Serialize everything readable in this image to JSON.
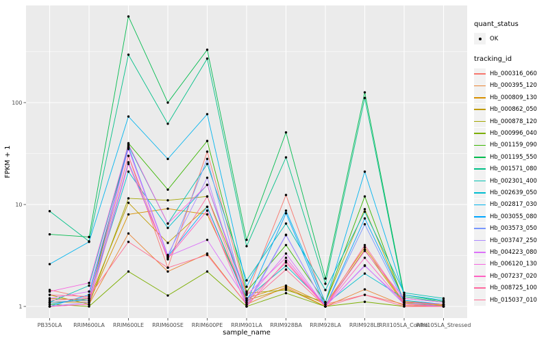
{
  "chart_data": {
    "type": "line",
    "title": "",
    "xlabel": "sample_name",
    "ylabel": "FPKM + 1",
    "x_categories": [
      "PB350LA",
      "RRIM600LA",
      "RRIM600LE",
      "RRIM600SE",
      "RRIM600PE",
      "RRIM901LA",
      "RRIM928BA",
      "RRIM928LA",
      "RRIM928LE",
      "RRII105LA_Control",
      "RRII105LA_Stressed"
    ],
    "y_axis": {
      "scale": "log10",
      "tick_labels": [
        "1",
        "10",
        "100"
      ],
      "tick_values": [
        1,
        10,
        100
      ],
      "minor_values": [
        3.162,
        31.62,
        316.2
      ],
      "ylim": [
        0.77,
        890
      ]
    },
    "legend": {
      "quant_status": {
        "title": "quant_status",
        "items": [
          {
            "label": "OK",
            "marker": "point"
          }
        ]
      },
      "tracking_id": {
        "title": "tracking_id"
      }
    },
    "panel": {
      "bg": "#EBEBEB",
      "grid_major": "#FFFFFF",
      "grid_minor": "#FFFFFF",
      "tick_color": "#333333",
      "tick_label_color": "#4D4D4D"
    },
    "series": [
      {
        "name": "Hb_000316_060",
        "color": "#F8766D",
        "values": [
          1.45,
          1.2,
          30,
          2.4,
          33,
          1.3,
          12.4,
          1.05,
          1.3,
          1.05,
          1.0
        ]
      },
      {
        "name": "Hb_000395_120",
        "color": "#EA8331",
        "values": [
          1.0,
          1.05,
          5.2,
          2.2,
          3.3,
          1.05,
          1.55,
          1.0,
          1.47,
          1.02,
          1.0
        ]
      },
      {
        "name": "Hb_000809_130",
        "color": "#D89000",
        "values": [
          1.1,
          1.1,
          8.0,
          9.1,
          8.0,
          1.2,
          1.6,
          1.05,
          3.8,
          1.08,
          1.03
        ]
      },
      {
        "name": "Hb_000862_050",
        "color": "#C09B00",
        "values": [
          1.2,
          1.15,
          10.4,
          4.2,
          9.5,
          1.15,
          1.5,
          1.0,
          3.6,
          1.05,
          1.02
        ]
      },
      {
        "name": "Hb_000878_120",
        "color": "#A3A500",
        "values": [
          1.3,
          1.05,
          11.5,
          11,
          12,
          1.35,
          1.45,
          1.1,
          9.0,
          1.12,
          1.05
        ]
      },
      {
        "name": "Hb_000996_040",
        "color": "#7CAE00",
        "values": [
          1.05,
          1.0,
          2.2,
          1.28,
          2.2,
          1.0,
          1.35,
          1.0,
          1.11,
          1.0,
          1.0
        ]
      },
      {
        "name": "Hb_001159_090",
        "color": "#39B600",
        "values": [
          1.1,
          1.15,
          40,
          14,
          42,
          1.4,
          4.0,
          1.1,
          12,
          1.1,
          1.05
        ]
      },
      {
        "name": "Hb_001195_550",
        "color": "#00BB4E",
        "values": [
          5.1,
          4.8,
          700,
          100,
          330,
          4.5,
          51,
          1.88,
          126,
          1.3,
          1.12
        ]
      },
      {
        "name": "Hb_001571_080",
        "color": "#00C087",
        "values": [
          8.6,
          4.35,
          295,
          62,
          270,
          3.9,
          29,
          1.67,
          111,
          1.25,
          1.1
        ]
      },
      {
        "name": "Hb_002301_400",
        "color": "#00C0B2",
        "values": [
          1.1,
          1.6,
          38,
          6.5,
          25,
          1.8,
          6.5,
          1.45,
          8.5,
          1.36,
          1.2
        ]
      },
      {
        "name": "Hb_002639_050",
        "color": "#00BDD0",
        "values": [
          1.05,
          1.2,
          21,
          5.9,
          15.6,
          1.2,
          2.5,
          1.05,
          2.1,
          1.2,
          1.1
        ]
      },
      {
        "name": "Hb_002817_030",
        "color": "#00B4EF",
        "values": [
          2.6,
          4.3,
          73,
          28,
          77,
          1.56,
          8.7,
          1.1,
          21,
          1.3,
          1.15
        ]
      },
      {
        "name": "Hb_003055_080",
        "color": "#00A5FF",
        "values": [
          1.0,
          1.3,
          37,
          3.1,
          9.5,
          1.1,
          8.2,
          1.0,
          7.3,
          1.15,
          1.05
        ]
      },
      {
        "name": "Hb_003573_050",
        "color": "#7997FF",
        "values": [
          1.1,
          1.15,
          26,
          3.0,
          28,
          1.05,
          5.05,
          1.0,
          6.4,
          1.1,
          1.0
        ]
      },
      {
        "name": "Hb_003747_250",
        "color": "#AC88FF",
        "values": [
          1.0,
          1.1,
          36,
          3.2,
          18.3,
          1.0,
          5.0,
          1.0,
          2.53,
          1.05,
          1.0
        ]
      },
      {
        "name": "Hb_004223_080",
        "color": "#DC71FA",
        "values": [
          1.2,
          1.4,
          35,
          3.1,
          4.5,
          1.15,
          3.3,
          1.0,
          2.5,
          1.1,
          1.05
        ]
      },
      {
        "name": "Hb_006120_130",
        "color": "#F763E0",
        "values": [
          1.4,
          1.7,
          39,
          6.5,
          15.6,
          1.3,
          3.0,
          1.0,
          3.5,
          1.2,
          1.1
        ]
      },
      {
        "name": "Hb_007237_020",
        "color": "#FF61C3",
        "values": [
          1.0,
          1.05,
          25,
          3.0,
          8.7,
          1.0,
          2.8,
          1.0,
          3.0,
          1.05,
          1.0
        ]
      },
      {
        "name": "Hb_008725_100",
        "color": "#FF689E",
        "values": [
          1.15,
          1.2,
          30,
          2.9,
          12,
          1.1,
          2.7,
          1.0,
          4.0,
          1.1,
          1.05
        ]
      },
      {
        "name": "Hb_015037_010",
        "color": "#FF6C91",
        "values": [
          1.3,
          1.25,
          4.3,
          2.4,
          3.2,
          1.05,
          2.3,
          1.0,
          1.3,
          1.0,
          1.0
        ]
      }
    ]
  }
}
